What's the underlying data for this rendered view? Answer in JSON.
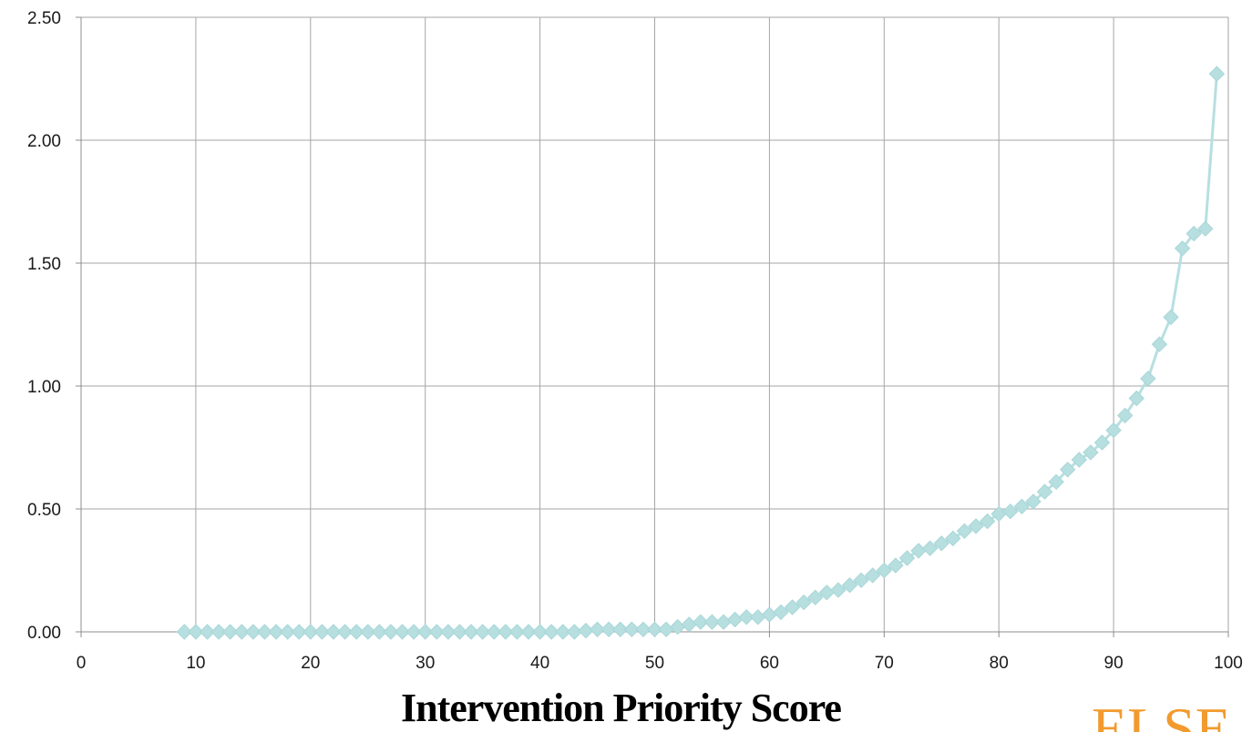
{
  "chart_data": {
    "type": "line",
    "title": "",
    "xlabel": "Intervention Priority Score",
    "ylabel": "",
    "xlim": [
      0,
      100
    ],
    "ylim": [
      0,
      2.5
    ],
    "x_ticks": [
      "0",
      "10",
      "20",
      "30",
      "40",
      "50",
      "60",
      "70",
      "80",
      "90",
      "100"
    ],
    "y_ticks": [
      "0.00",
      "0.50",
      "1.00",
      "1.50",
      "2.00",
      "2.50"
    ],
    "grid": true,
    "legend": "none",
    "series_color": "#b7dfe0",
    "series": [
      {
        "x": [
          9,
          10,
          11,
          12,
          13,
          14,
          15,
          16,
          17,
          18,
          19,
          20,
          21,
          22,
          23,
          24,
          25,
          26,
          27,
          28,
          29,
          30,
          31,
          32,
          33,
          34,
          35,
          36,
          37,
          38,
          39,
          40,
          41,
          42,
          43,
          44,
          45,
          46,
          47,
          48,
          49,
          50,
          51,
          52,
          53,
          54,
          55,
          56,
          57,
          58,
          59,
          60,
          61,
          62,
          63,
          64,
          65,
          66,
          67,
          68,
          69,
          70,
          71,
          72,
          73,
          74,
          75,
          76,
          77,
          78,
          79,
          80,
          81,
          82,
          83,
          84,
          85,
          86,
          87,
          88,
          89,
          90,
          91,
          92,
          93,
          94,
          95,
          96,
          97,
          98,
          99
        ],
        "values": [
          0,
          0,
          0,
          0,
          0,
          0,
          0,
          0,
          0,
          0,
          0,
          0,
          0,
          0,
          0,
          0,
          0,
          0,
          0,
          0,
          0,
          0,
          0,
          0,
          0,
          0,
          0,
          0,
          0,
          0,
          0,
          0,
          0,
          0,
          0,
          0.005,
          0.01,
          0.01,
          0.01,
          0.01,
          0.01,
          0.01,
          0.01,
          0.02,
          0.03,
          0.04,
          0.04,
          0.04,
          0.05,
          0.06,
          0.06,
          0.07,
          0.08,
          0.1,
          0.12,
          0.14,
          0.16,
          0.17,
          0.19,
          0.21,
          0.23,
          0.25,
          0.27,
          0.3,
          0.33,
          0.34,
          0.36,
          0.38,
          0.41,
          0.43,
          0.45,
          0.48,
          0.49,
          0.51,
          0.53,
          0.57,
          0.61,
          0.66,
          0.7,
          0.73,
          0.77,
          0.82,
          0.88,
          0.95,
          1.03,
          1.17,
          1.28,
          1.56,
          1.62,
          1.64,
          2.27
        ]
      }
    ]
  },
  "logo": {
    "text": "ELSE"
  }
}
